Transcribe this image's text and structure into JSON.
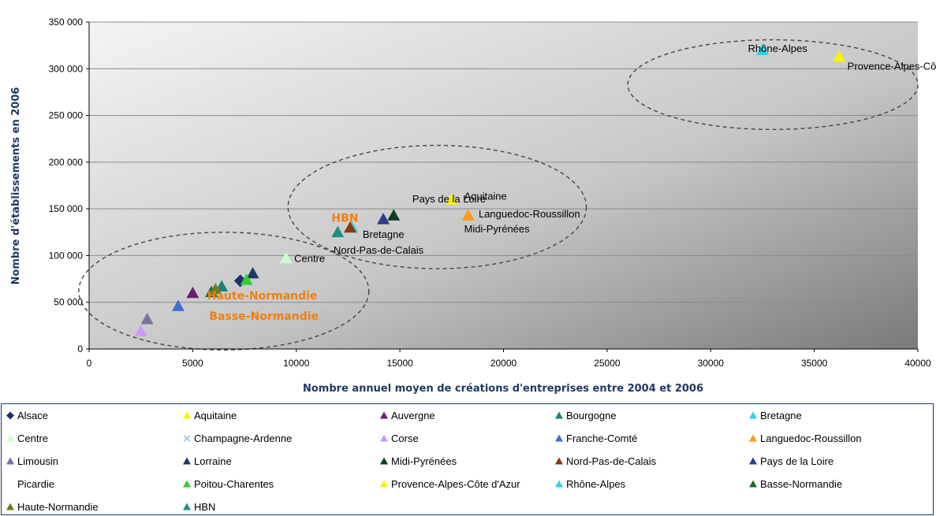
{
  "chart_data": {
    "type": "scatter",
    "xlabel": "Nombre annuel moyen de créations d'entreprises entre 2004 et 2006",
    "ylabel": "Nombre d'établissements en 2006",
    "xlim": [
      0,
      40000
    ],
    "ylim": [
      0,
      350000
    ],
    "x_ticks": [
      "0",
      "5000",
      "10000",
      "15000",
      "20000",
      "25000",
      "30000",
      "35000",
      "40000"
    ],
    "y_ticks": [
      "0",
      "50 000",
      "100 000",
      "150 000",
      "200 000",
      "250 000",
      "300 000",
      "350 000"
    ],
    "grid": "horizontal",
    "legend_position": "bottom",
    "series": [
      {
        "name": "Alsace",
        "marker": "diamond",
        "color": "#1f2f6e",
        "x": 7300,
        "y": 73000
      },
      {
        "name": "Aquitaine",
        "marker": "triangle",
        "color": "#f8f400",
        "x": 17500,
        "y": 160000
      },
      {
        "name": "Auvergne",
        "marker": "triangle",
        "color": "#6a1f6e",
        "x": 5000,
        "y": 60000
      },
      {
        "name": "Bourgogne",
        "marker": "triangle",
        "color": "#1f7f7a",
        "x": 6400,
        "y": 67000
      },
      {
        "name": "Bretagne",
        "marker": "triangle",
        "color": "#27d7e8",
        "x": 12700,
        "y": 130000
      },
      {
        "name": "Centre",
        "marker": "triangle",
        "color": "#ccffcc",
        "x": 9500,
        "y": 97000
      },
      {
        "name": "Champagne-Ardenne",
        "marker": "x",
        "color": "#99ccff",
        "x": 6000,
        "y": 61000
      },
      {
        "name": "Corse",
        "marker": "triangle",
        "color": "#cc99ff",
        "x": 2500,
        "y": 19000
      },
      {
        "name": "Franche-Comté",
        "marker": "triangle",
        "color": "#3f6fd0",
        "x": 4300,
        "y": 46000
      },
      {
        "name": "Languedoc-Roussillon",
        "marker": "triangle",
        "color": "#ff9a1a",
        "x": 18300,
        "y": 143000
      },
      {
        "name": "Limousin",
        "marker": "triangle",
        "color": "#7f6fa0",
        "x": 2800,
        "y": 32000
      },
      {
        "name": "Lorraine",
        "marker": "triangle",
        "color": "#1f3864",
        "x": 7900,
        "y": 81000
      },
      {
        "name": "Midi-Pyrénées",
        "marker": "triangle",
        "color": "#0f3f1f",
        "x": 14700,
        "y": 143000
      },
      {
        "name": "Nord-Pas-de-Calais",
        "marker": "triangle",
        "color": "#8b3a0f",
        "x": 12600,
        "y": 130000
      },
      {
        "name": "Pays de la Loire",
        "marker": "triangle",
        "color": "#2f3b8f",
        "x": 14200,
        "y": 139000
      },
      {
        "name": "Picardie",
        "marker": "none",
        "color": "#ffffff",
        "x": 6100,
        "y": 60000
      },
      {
        "name": "Poitou-Charentes",
        "marker": "triangle",
        "color": "#33cc33",
        "x": 7600,
        "y": 74000
      },
      {
        "name": "Provence-Alpes-Côte d'Azur",
        "marker": "triangle",
        "color": "#f8f400",
        "x": 36200,
        "y": 313000
      },
      {
        "name": "Rhône-Alpes",
        "marker": "triangle",
        "color": "#27d7e8",
        "x": 32500,
        "y": 320000
      },
      {
        "name": "Basse-Normandie",
        "marker": "triangle",
        "color": "#1f6b2f",
        "x": 5900,
        "y": 61000
      },
      {
        "name": "Haute-Normandie",
        "marker": "triangle",
        "color": "#6b7f1f",
        "x": 6100,
        "y": 64000
      },
      {
        "name": "HBN",
        "marker": "triangle",
        "color": "#1f8f7f",
        "x": 12000,
        "y": 125000
      }
    ],
    "annotations": [
      {
        "text": "Rhône-Alpes",
        "style": "normal",
        "x": 31800,
        "y": 318000
      },
      {
        "text": "Provence-Alpes-Côte d'Azur",
        "style": "normal",
        "x": 36600,
        "y": 299000
      },
      {
        "text": "Pays de la Loire",
        "style": "normal",
        "x": 15600,
        "y": 157000
      },
      {
        "text": "Aquitaine",
        "style": "normal",
        "x": 18100,
        "y": 160000
      },
      {
        "text": "Languedoc-Roussillon",
        "style": "normal",
        "x": 18800,
        "y": 141000
      },
      {
        "text": "Midi-Pyrénées",
        "style": "normal",
        "x": 18100,
        "y": 125000
      },
      {
        "text": "HBN",
        "style": "orange",
        "x": 11700,
        "y": 136000
      },
      {
        "text": "Bretagne",
        "style": "normal",
        "x": 13200,
        "y": 119000
      },
      {
        "text": "Nord-Pas-de-Calais",
        "style": "normal",
        "x": 11800,
        "y": 102000
      },
      {
        "text": "Centre",
        "style": "normal",
        "x": 9900,
        "y": 93000
      },
      {
        "text": "Haute-Normandie",
        "style": "orange",
        "x": 5700,
        "y": 53000
      },
      {
        "text": "Basse-Normandie",
        "style": "orange",
        "x": 5800,
        "y": 31000
      }
    ],
    "ellipses": [
      {
        "cx": 33000,
        "cy": 283000,
        "rx": 7000,
        "ry": 48000
      },
      {
        "cx": 16800,
        "cy": 152000,
        "rx": 7200,
        "ry": 66000
      },
      {
        "cx": 6500,
        "cy": 62000,
        "rx": 7000,
        "ry": 63000
      }
    ]
  },
  "legend_items": [
    "Alsace",
    "Aquitaine",
    "Auvergne",
    "Bourgogne",
    "Bretagne",
    "Centre",
    "Champagne-Ardenne",
    "Corse",
    "Franche-Comté",
    "Languedoc-Roussillon",
    "Limousin",
    "Lorraine",
    "Midi-Pyrénées",
    "Nord-Pas-de-Calais",
    "Pays de la Loire",
    "Picardie",
    "Poitou-Charentes",
    "Provence-Alpes-Côte d'Azur",
    "Rhône-Alpes",
    "Basse-Normandie",
    "Haute-Normandie",
    "HBN"
  ]
}
